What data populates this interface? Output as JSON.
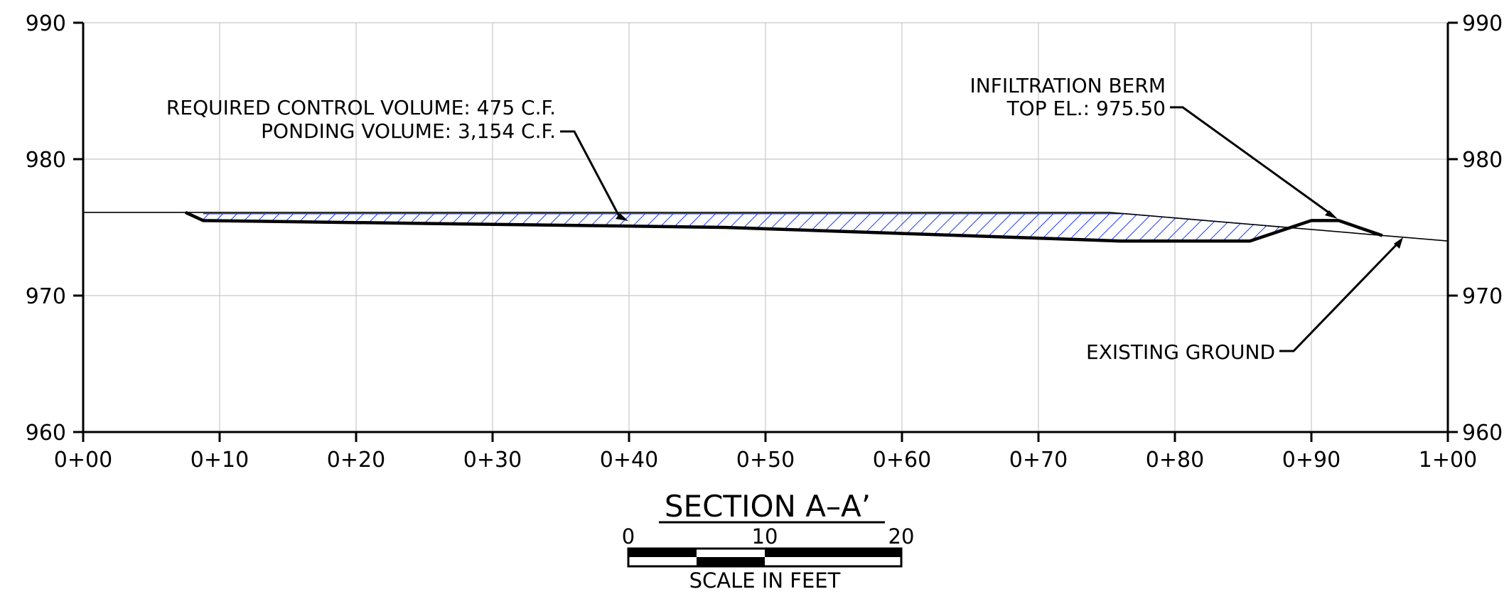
{
  "chart_data": {
    "type": "line",
    "title": "SECTION A–A’",
    "xlabel": "",
    "ylabel": "",
    "xlim": [
      0,
      100
    ],
    "ylim": [
      960,
      990
    ],
    "grid": true,
    "x_tick_labels": [
      "0+00",
      "0+10",
      "0+20",
      "0+30",
      "0+40",
      "0+50",
      "0+60",
      "0+70",
      "0+80",
      "0+90",
      "1+00"
    ],
    "x_ticks": [
      0,
      10,
      20,
      30,
      40,
      50,
      60,
      70,
      80,
      90,
      100
    ],
    "y_ticks": [
      960,
      970,
      980,
      990
    ],
    "y_tick_labels": [
      "960",
      "970",
      "980",
      "990"
    ],
    "series": [
      {
        "name": "",
        "role": "existing-ground",
        "x": [
          0,
          7.5,
          75.2,
          100
        ],
        "y": [
          976.1,
          976.1,
          976.1,
          974.0
        ]
      },
      {
        "name": "",
        "role": "proposed-grade",
        "x": [
          7.5,
          8.8,
          47,
          76,
          85.5,
          90,
          92,
          95.2
        ],
        "y": [
          976.1,
          975.5,
          975.0,
          974.0,
          974.0,
          975.5,
          975.5,
          974.4
        ]
      }
    ],
    "ponding": {
      "water_surface_elevation": 976.0,
      "x_start": 8.8,
      "x_end": 88.7,
      "hatch_color": "#1a3aff"
    },
    "annotations": {
      "volume_line1": "REQUIRED CONTROL VOLUME: 475 C.F.",
      "volume_line2": "PONDING VOLUME: 3,154 C.F.",
      "berm_line1": "INFILTRATION BERM",
      "berm_line2": "TOP EL.: 975.50",
      "existing_ground": "EXISTING GROUND"
    }
  },
  "scale_bar": {
    "labels": [
      "0",
      "10",
      "20"
    ],
    "caption": "SCALE IN FEET"
  },
  "colors": {
    "grid": "#c8c8c8",
    "line": "#000000",
    "hatch": "#1a3aff"
  }
}
